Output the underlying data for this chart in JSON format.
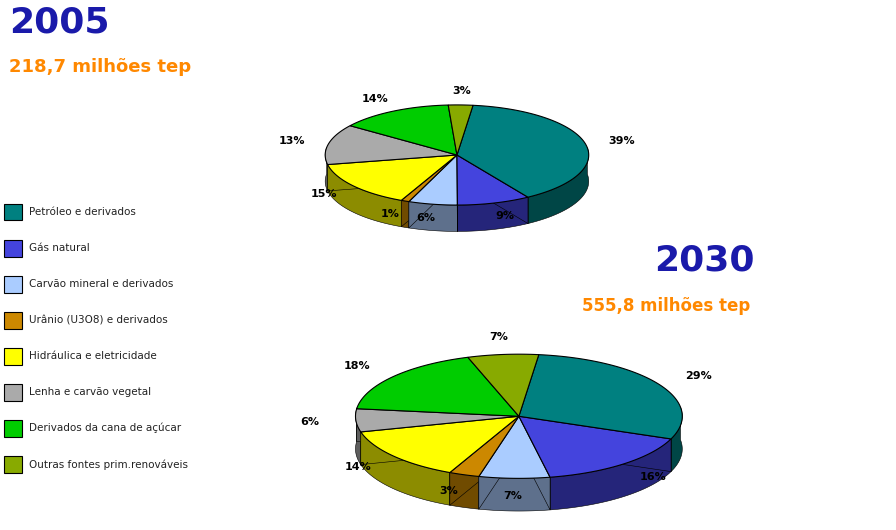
{
  "title_2005": "2005",
  "subtitle_2005": "218,7 milhões tep",
  "title_2030": "2030",
  "subtitle_2030": "555,8 milhões tep",
  "title_color": "#1a1aaa",
  "subtitle_color": "#ff8800",
  "categories": [
    "Petróleo e derivados",
    "Gás natural",
    "Carvão mineral e derivados",
    "Urânio (U3O8) e derivados",
    "Hidráulica e eletricidade",
    "Lenha e carvão vegetal",
    "Derivados da cana de açúcar",
    "Outras fontes prim.renováveis"
  ],
  "colors": [
    "#008080",
    "#4444dd",
    "#aaccff",
    "#cc8800",
    "#ffff00",
    "#aaaaaa",
    "#00cc00",
    "#88aa00"
  ],
  "values_2005": [
    39,
    9,
    6,
    1,
    15,
    13,
    14,
    3
  ],
  "values_2030": [
    29,
    16,
    7,
    3,
    14,
    6,
    18,
    7
  ],
  "bg_color": "#ffffff"
}
